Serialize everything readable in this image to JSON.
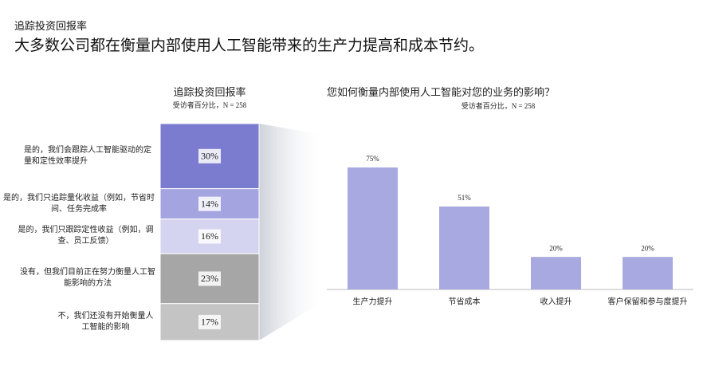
{
  "header": {
    "kicker": "追踪投资回报率",
    "headline": "大多数公司都在衡量内部使用人工智能带来的生产力提高和成本节约。"
  },
  "chart_data": [
    {
      "type": "stacked-column",
      "title": "追踪投资回报率",
      "subtitle": "受访者百分比，N = 258",
      "series": [
        {
          "name": "是的，我们会跟踪人工智能驱动的定量和定性效率提升",
          "color": "#7b7bd0",
          "values": [
            30
          ],
          "value_labels": [
            "30%"
          ]
        },
        {
          "name": "是的，我们只追踪量化收益（例如，节省时间、任务完成率",
          "color": "#a4a4e0",
          "values": [
            14
          ],
          "value_labels": [
            "14%"
          ]
        },
        {
          "name": "是的，我们只跟踪定性收益（例如，调查、员工反馈）",
          "color": "#d4d4f0",
          "values": [
            16
          ],
          "value_labels": [
            "16%"
          ]
        },
        {
          "name": "没有，但我们目前正在努力衡量人工智能影响的方法",
          "color": "#a6a6a6",
          "values": [
            23
          ],
          "value_labels": [
            "23%"
          ]
        },
        {
          "name": "不，我们还没有开始衡量人工智能的影响",
          "color": "#c4c4c4",
          "values": [
            17
          ],
          "value_labels": [
            "17%"
          ]
        }
      ]
    },
    {
      "type": "bar",
      "title": "您如何衡量内部使用人工智能对您的业务的影响？",
      "subtitle": "受访者百分比，N = 258",
      "categories": [
        "生产力提升",
        "节省成本",
        "收入提升",
        "客户保留和参与度提升"
      ],
      "values": [
        75,
        51,
        20,
        20
      ],
      "value_labels": [
        "75%",
        "51%",
        "20%",
        "20%"
      ],
      "color": "#a9a9e2"
    }
  ]
}
